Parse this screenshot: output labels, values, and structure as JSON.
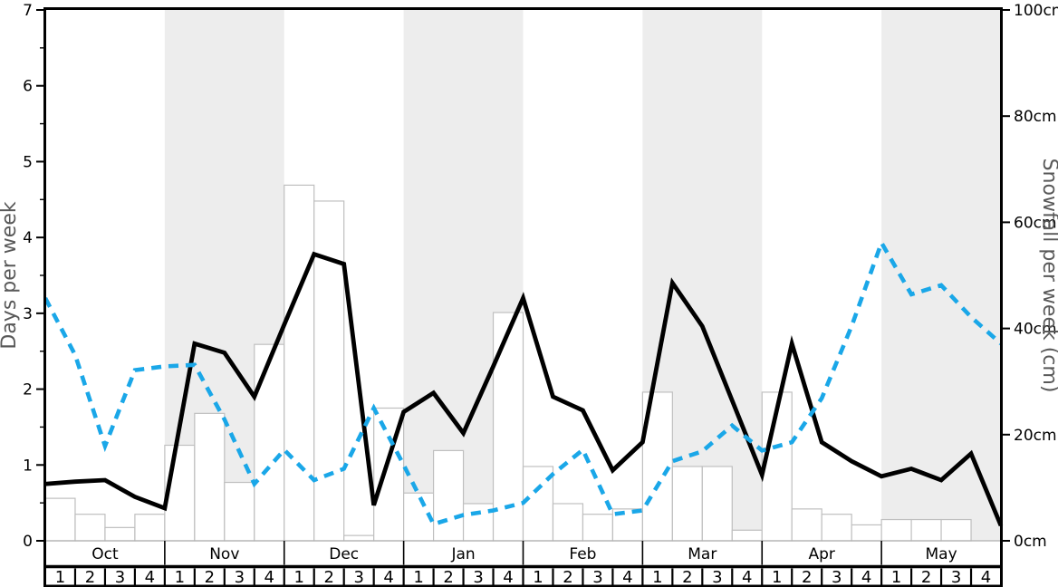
{
  "chart_data": {
    "type": "line",
    "title": "",
    "description": "Weekly snow history chart: outlined bars (snowfall cm, right axis), solid black line and dashed blue line (days per week, left axis), per week Oct-May",
    "x": {
      "months": [
        "Oct",
        "Nov",
        "Dec",
        "Jan",
        "Feb",
        "Mar",
        "Apr",
        "May"
      ],
      "weeks_per_month": 4,
      "week_labels": [
        "1",
        "2",
        "3",
        "4"
      ],
      "shaded_month_indices": [
        1,
        3,
        5,
        7
      ]
    },
    "left_axis": {
      "label": "Days per week",
      "min": 0,
      "max": 7,
      "major_step": 1,
      "minor_step": 0.5,
      "tick_labels": [
        "0",
        "1",
        "2",
        "3",
        "4",
        "5",
        "6",
        "7"
      ]
    },
    "right_axis": {
      "label": "Snowfall per week (cm)",
      "min": 0,
      "max": 100,
      "major_step": 20,
      "tick_labels": [
        "0cm",
        "20cm",
        "40cm",
        "60cm",
        "80cm",
        "100cm"
      ]
    },
    "bars": {
      "name": "weekly-snowfall-bars",
      "axis": "right",
      "unit": "cm",
      "values": [
        8,
        5,
        2.5,
        5,
        18,
        24,
        11,
        37,
        67,
        64,
        1,
        25,
        9,
        17,
        7,
        43,
        14,
        7,
        5,
        6,
        28,
        14,
        14,
        2,
        28,
        6,
        5,
        3,
        4,
        4,
        4,
        0
      ]
    },
    "series": [
      {
        "name": "solid-black-line",
        "axis": "left",
        "style": "solid",
        "color": "#000000",
        "values": [
          0.75,
          0.78,
          0.8,
          0.58,
          0.43,
          2.6,
          2.48,
          1.9,
          2.85,
          3.78,
          3.65,
          0.47,
          1.7,
          1.95,
          1.42,
          2.3,
          3.2,
          1.9,
          1.72,
          0.93,
          1.3,
          3.4,
          2.83,
          1.85,
          0.87,
          2.6,
          1.3,
          1.05,
          0.85,
          0.95,
          0.8,
          1.15,
          0.2
        ]
      },
      {
        "name": "dashed-blue-line",
        "axis": "left",
        "style": "dashed",
        "color": "#1aa7e8",
        "values": [
          3.2,
          2.45,
          1.25,
          2.25,
          2.3,
          2.32,
          1.6,
          0.75,
          1.2,
          0.8,
          0.95,
          1.75,
          1.0,
          0.22,
          0.34,
          0.4,
          0.5,
          0.88,
          1.2,
          0.35,
          0.4,
          1.05,
          1.18,
          1.52,
          1.19,
          1.3,
          1.88,
          2.83,
          3.93,
          3.25,
          3.37,
          2.95,
          2.6
        ],
        "values_cm": [
          45.7,
          35.0,
          17.9,
          32.1,
          32.9,
          33.1,
          22.9,
          10.7,
          17.1,
          11.4,
          13.6,
          25.0,
          14.3,
          3.1,
          4.9,
          5.7,
          7.1,
          12.6,
          17.1,
          5.0,
          5.7,
          15.0,
          16.9,
          21.7,
          17.0,
          18.6,
          26.9,
          40.4,
          56.1,
          46.4,
          48.1,
          42.1,
          37.1
        ]
      }
    ],
    "layout_hints": {
      "grid": "off",
      "legend": "none",
      "band_color": "#ededed",
      "bar_fill": "#ffffff",
      "bar_stroke": "#bfbfbf",
      "baseline_color": "#b0b0b0",
      "axis_title_color": "#595959",
      "tick_label_color": "#000000"
    }
  }
}
